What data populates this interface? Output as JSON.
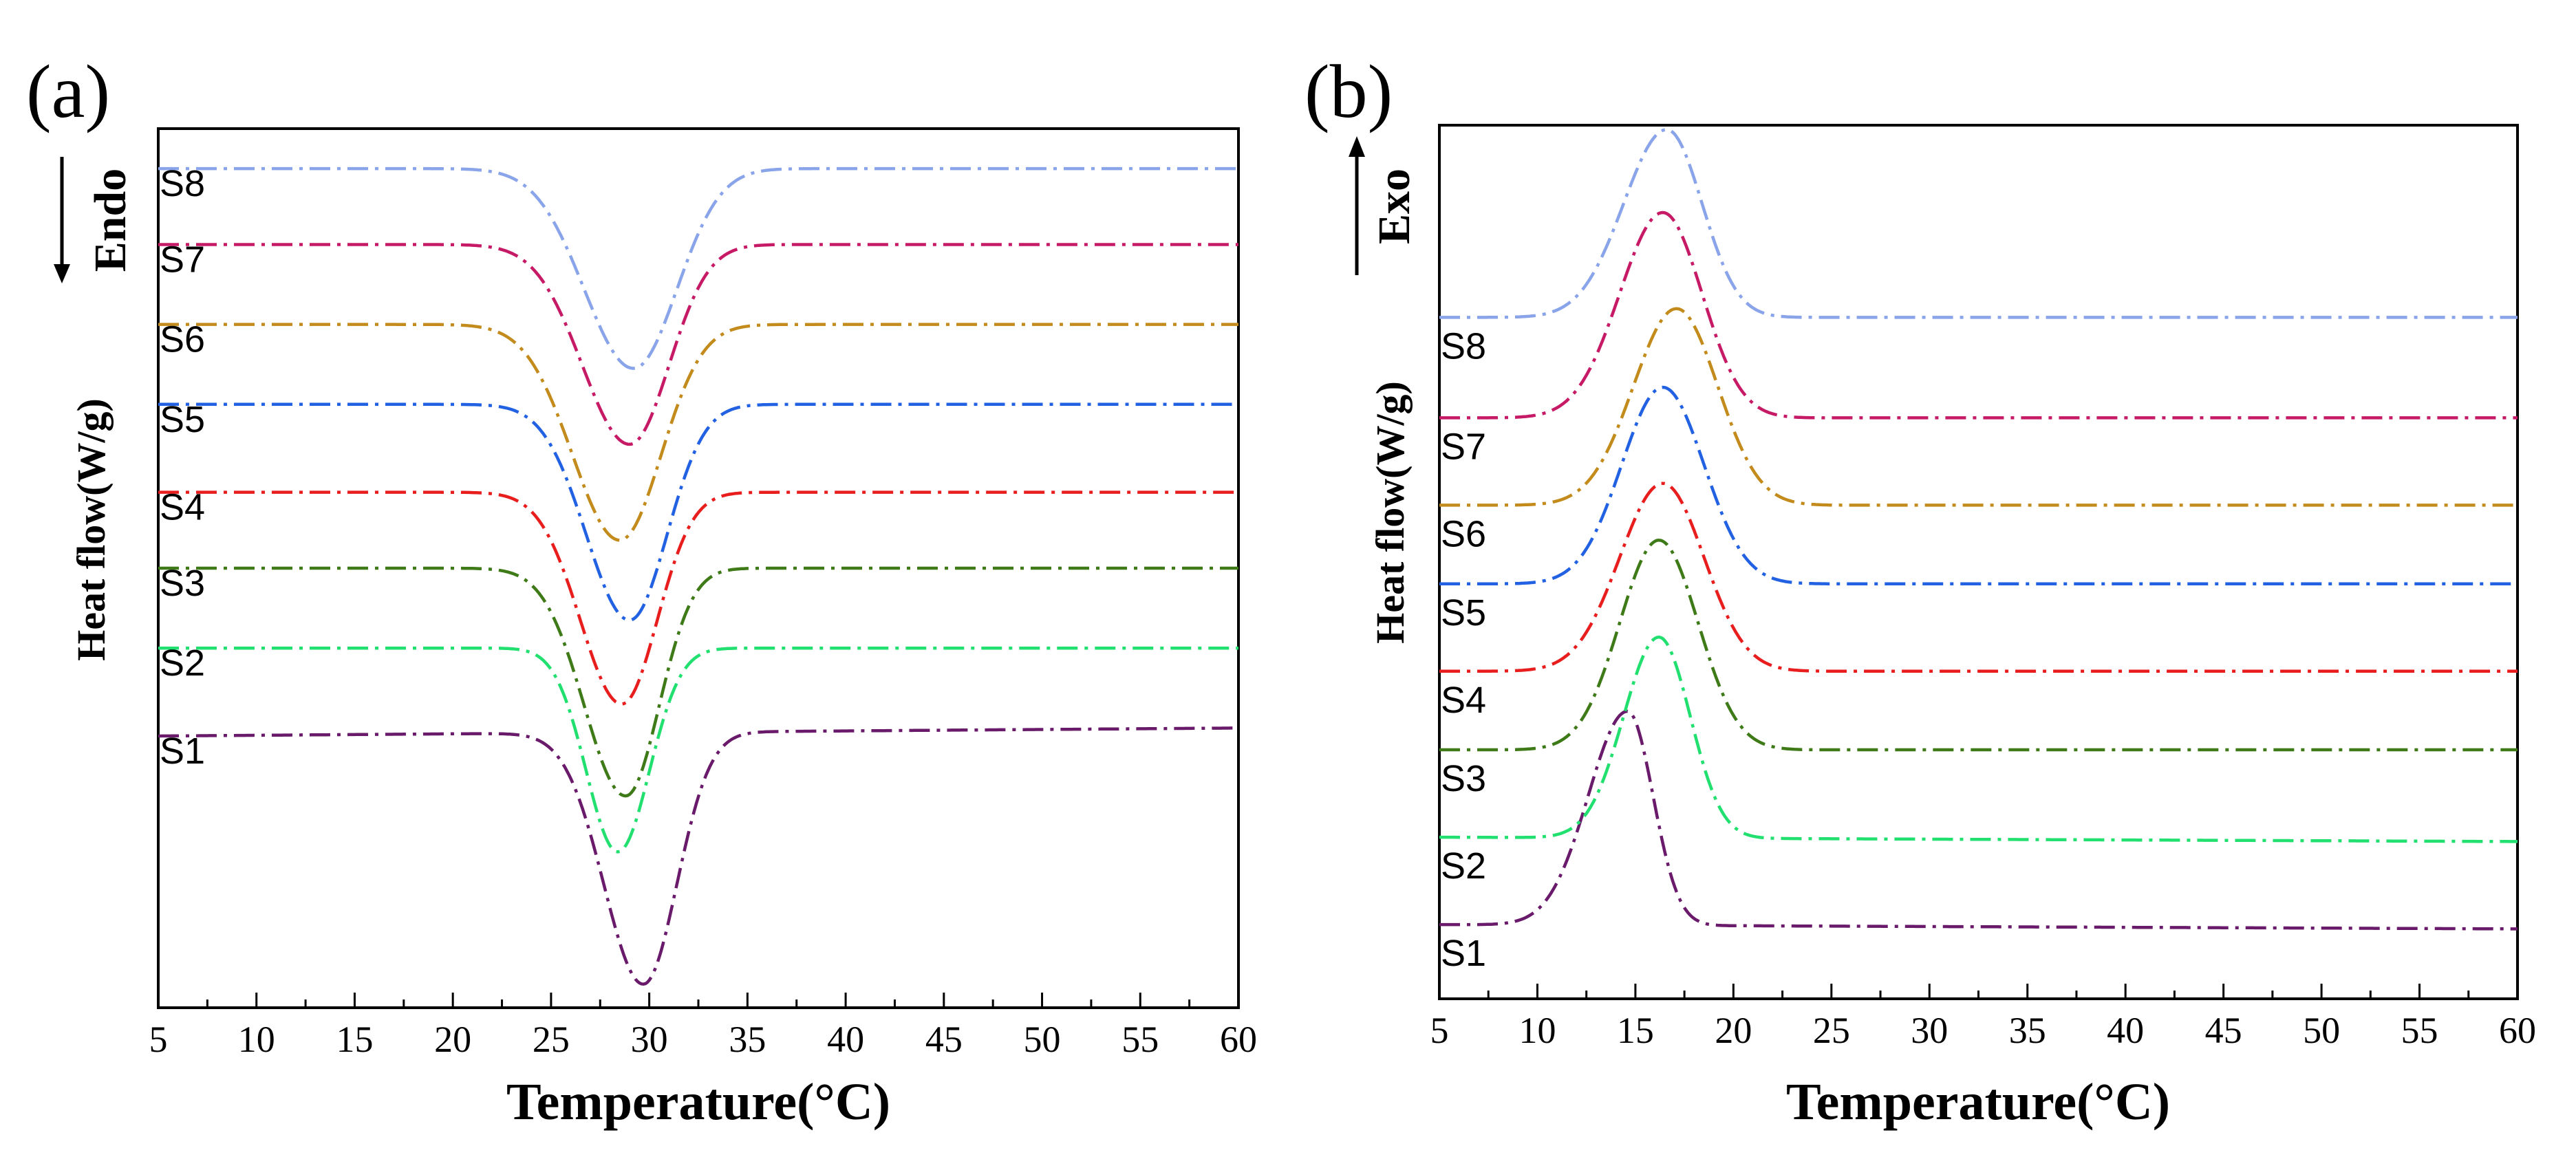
{
  "chart_data": [
    {
      "type": "line",
      "panel_label": "(a)",
      "title": "",
      "xlabel": "Temperature(°C)",
      "ylabel": "Heat flow(W/g)",
      "direction_label": "Endo",
      "direction": "down",
      "xlim": [
        5,
        60
      ],
      "xticks": [
        5,
        10,
        15,
        20,
        25,
        30,
        35,
        40,
        45,
        50,
        55,
        60
      ],
      "xtick_labels": [
        "5",
        "10",
        "15",
        "20",
        "25",
        "30",
        "35",
        "40",
        "45",
        "50",
        "55",
        "60"
      ],
      "ylim": [
        0,
        11
      ],
      "peak_kind": "trough",
      "series": [
        {
          "name": "S1",
          "color": "#6a1a6a",
          "baseline": 3.4,
          "baseline_end": 3.5,
          "peak_x": 29.7,
          "depth": 3.15,
          "sigma_left": 2.0,
          "sigma_right": 1.7
        },
        {
          "name": "S2",
          "color": "#22e06f",
          "baseline": 4.5,
          "baseline_end": 4.5,
          "peak_x": 28.4,
          "depth": 2.55,
          "sigma_left": 1.6,
          "sigma_right": 1.6
        },
        {
          "name": "S3",
          "color": "#3f7a19",
          "baseline": 5.5,
          "baseline_end": 5.5,
          "peak_x": 28.8,
          "depth": 2.85,
          "sigma_left": 2.1,
          "sigma_right": 1.7
        },
        {
          "name": "S4",
          "color": "#e81e1e",
          "baseline": 6.45,
          "baseline_end": 6.45,
          "peak_x": 28.6,
          "depth": 2.65,
          "sigma_left": 2.1,
          "sigma_right": 1.8
        },
        {
          "name": "S5",
          "color": "#2262e2",
          "baseline": 7.55,
          "baseline_end": 7.55,
          "peak_x": 29.0,
          "depth": 2.7,
          "sigma_left": 2.2,
          "sigma_right": 1.9
        },
        {
          "name": "S6",
          "color": "#c28b1c",
          "baseline": 8.55,
          "baseline_end": 8.55,
          "peak_x": 28.5,
          "depth": 2.7,
          "sigma_left": 2.4,
          "sigma_right": 2.1
        },
        {
          "name": "S7",
          "color": "#c71a66",
          "baseline": 9.55,
          "baseline_end": 9.55,
          "peak_x": 29.0,
          "depth": 2.5,
          "sigma_left": 2.4,
          "sigma_right": 2.0
        },
        {
          "name": "S8",
          "color": "#8aa4ea",
          "baseline": 10.5,
          "baseline_end": 10.5,
          "peak_x": 29.2,
          "depth": 2.5,
          "sigma_left": 2.5,
          "sigma_right": 2.2
        }
      ]
    },
    {
      "type": "line",
      "panel_label": "(b)",
      "title": "",
      "xlabel": "Temperature(°C)",
      "ylabel": "Heat flow(W/g)",
      "direction_label": "Exo",
      "direction": "up",
      "xlim": [
        5,
        60
      ],
      "xticks": [
        5,
        10,
        15,
        20,
        25,
        30,
        35,
        40,
        45,
        50,
        55,
        60
      ],
      "xtick_labels": [
        "5",
        "10",
        "15",
        "20",
        "25",
        "30",
        "35",
        "40",
        "45",
        "50",
        "55",
        "60"
      ],
      "ylim": [
        0,
        10
      ],
      "peak_kind": "peak",
      "series": [
        {
          "name": "S1",
          "color": "#6a1a6a",
          "baseline": 0.85,
          "baseline_end": 0.8,
          "peak_x": 14.6,
          "depth": 2.45,
          "sigma_left": 2.0,
          "sigma_right": 1.3
        },
        {
          "name": "S2",
          "color": "#22e06f",
          "baseline": 1.85,
          "baseline_end": 1.8,
          "peak_x": 16.2,
          "depth": 2.3,
          "sigma_left": 1.8,
          "sigma_right": 1.6
        },
        {
          "name": "S3",
          "color": "#3f7a19",
          "baseline": 2.85,
          "baseline_end": 2.85,
          "peak_x": 16.2,
          "depth": 2.4,
          "sigma_left": 2.0,
          "sigma_right": 2.0
        },
        {
          "name": "S4",
          "color": "#e81e1e",
          "baseline": 3.75,
          "baseline_end": 3.75,
          "peak_x": 16.4,
          "depth": 2.15,
          "sigma_left": 2.2,
          "sigma_right": 2.1
        },
        {
          "name": "S5",
          "color": "#2262e2",
          "baseline": 4.75,
          "baseline_end": 4.75,
          "peak_x": 16.4,
          "depth": 2.25,
          "sigma_left": 2.1,
          "sigma_right": 2.1
        },
        {
          "name": "S6",
          "color": "#c28b1c",
          "baseline": 5.65,
          "baseline_end": 5.65,
          "peak_x": 17.1,
          "depth": 2.25,
          "sigma_left": 2.2,
          "sigma_right": 2.1
        },
        {
          "name": "S7",
          "color": "#c71a66",
          "baseline": 6.65,
          "baseline_end": 6.65,
          "peak_x": 16.4,
          "depth": 2.35,
          "sigma_left": 2.2,
          "sigma_right": 2.0
        },
        {
          "name": "S8",
          "color": "#8aa4ea",
          "baseline": 7.8,
          "baseline_end": 7.8,
          "peak_x": 16.6,
          "depth": 2.15,
          "sigma_left": 2.2,
          "sigma_right": 1.8
        }
      ]
    }
  ]
}
